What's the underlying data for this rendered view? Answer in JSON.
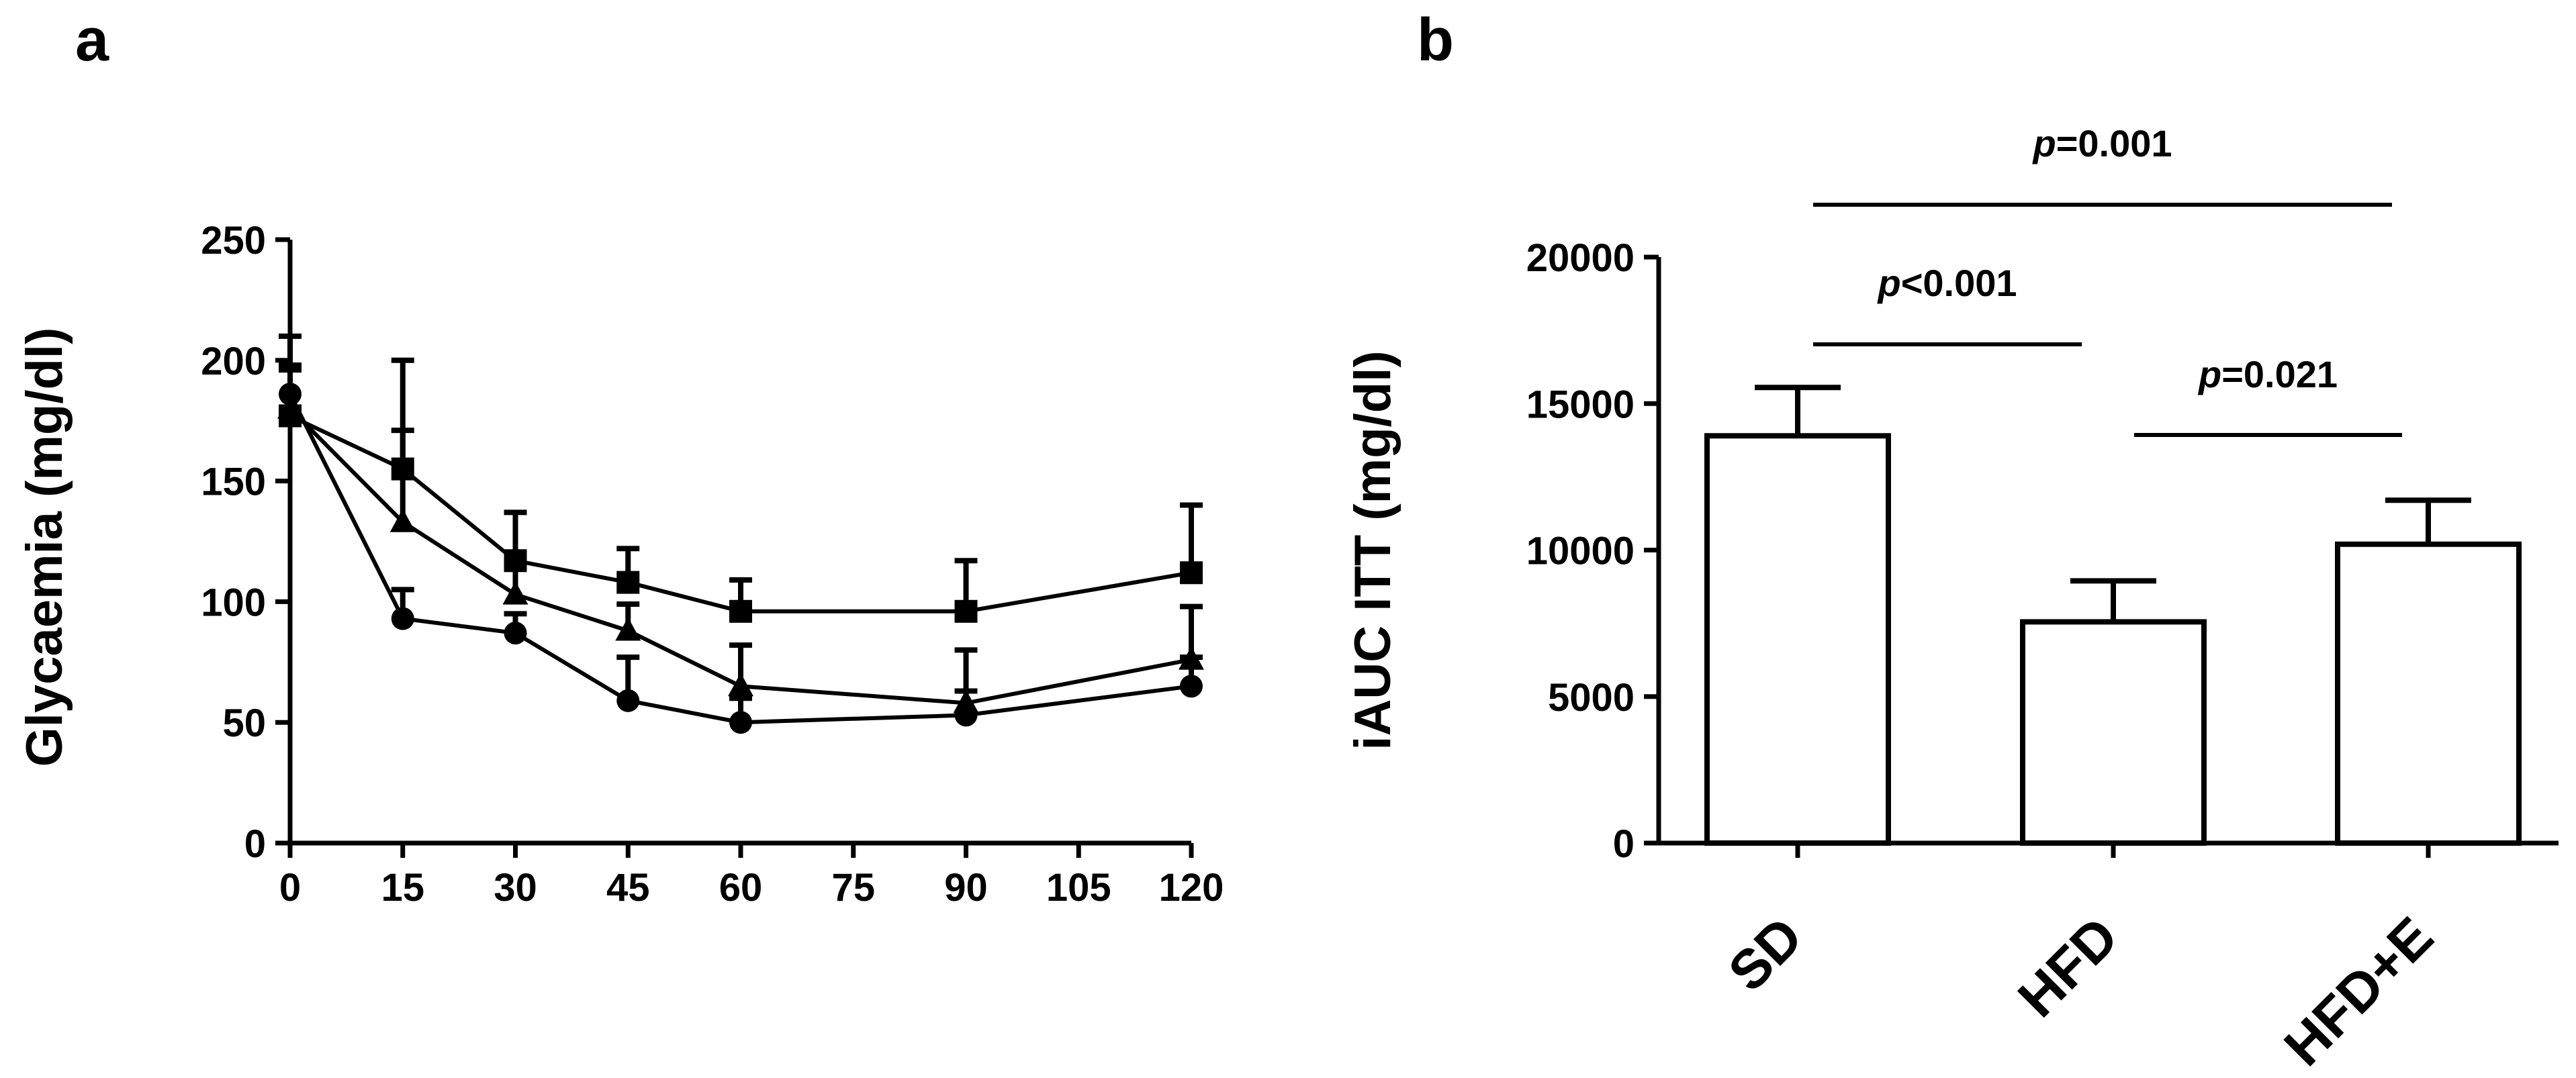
{
  "chart_data": [
    {
      "panel": "a",
      "type": "line",
      "title": "",
      "xlabel": "",
      "ylabel": "Glycaemia (mg/dl)",
      "xlim": [
        0,
        120
      ],
      "ylim": [
        0,
        250
      ],
      "xticks": [
        0,
        15,
        30,
        45,
        60,
        75,
        90,
        105,
        120
      ],
      "yticks": [
        0,
        50,
        100,
        150,
        200,
        250
      ],
      "grid": false,
      "series": [
        {
          "name": "squares",
          "marker": "square",
          "x": [
            0,
            15,
            30,
            45,
            60,
            90,
            120
          ],
          "y": [
            177,
            155,
            117,
            108,
            96,
            96,
            112
          ],
          "err": [
            33,
            45,
            20,
            14,
            13,
            21,
            28
          ]
        },
        {
          "name": "triangles",
          "marker": "triangle",
          "x": [
            0,
            15,
            30,
            45,
            60,
            90,
            120
          ],
          "y": [
            180,
            133,
            103,
            88,
            65,
            58,
            76
          ],
          "err": [
            18,
            38,
            16,
            11,
            17,
            22,
            22
          ]
        },
        {
          "name": "circles",
          "marker": "circle",
          "x": [
            0,
            15,
            30,
            45,
            60,
            90,
            120
          ],
          "y": [
            186,
            93,
            87,
            59,
            50,
            53,
            65
          ],
          "err": [
            10,
            12,
            8,
            18,
            10,
            10,
            12
          ]
        }
      ]
    },
    {
      "panel": "b",
      "type": "bar",
      "title": "",
      "xlabel": "",
      "ylabel": "iAUC ITT (mg/dl)",
      "ylim": [
        0,
        20000
      ],
      "yticks": [
        0,
        5000,
        10000,
        15000,
        20000
      ],
      "grid": false,
      "categories": [
        "SD",
        "HFD",
        "HFD+E"
      ],
      "values": [
        13900,
        7550,
        10200
      ],
      "err": [
        1650,
        1400,
        1500
      ],
      "annotations": [
        {
          "p_label": "p",
          "text": "=0.001",
          "from": 0,
          "to": 2
        },
        {
          "p_label": "p",
          "text": "<0.001",
          "from": 0,
          "to": 1
        },
        {
          "p_label": "p",
          "text": "=0.021",
          "from": 1,
          "to": 2
        }
      ]
    }
  ]
}
